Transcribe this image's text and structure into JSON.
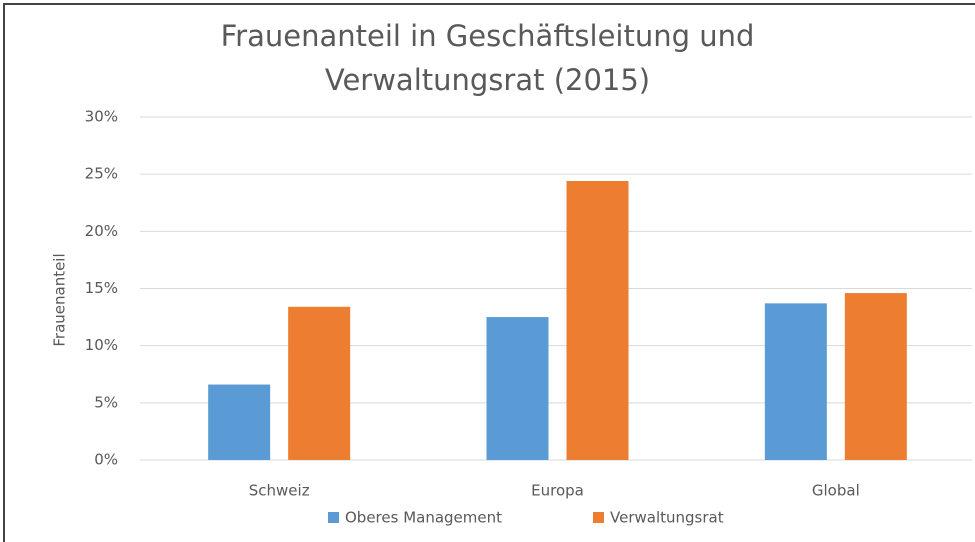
{
  "chart_data": {
    "type": "bar",
    "title": "Frauenanteil in Geschäftsleitung und Verwaltungsrat (2015)",
    "y_label": "Frauenanteil",
    "categories": [
      "Schweiz",
      "Europa",
      "Global"
    ],
    "series": [
      {
        "name": "Oberes Management",
        "color": "#5b9bd5",
        "values": [
          6.6,
          12.5,
          13.7
        ]
      },
      {
        "name": "Verwaltungsrat",
        "color": "#ed7d31",
        "values": [
          13.4,
          24.4,
          14.6
        ]
      }
    ],
    "ylim": [
      0,
      30
    ],
    "yticks": [
      {
        "value": 0,
        "label": "0%"
      },
      {
        "value": 5,
        "label": "5%"
      },
      {
        "value": 10,
        "label": "10%"
      },
      {
        "value": 15,
        "label": "15%"
      },
      {
        "value": 20,
        "label": "20%"
      },
      {
        "value": 25,
        "label": "25%"
      },
      {
        "value": 30,
        "label": "30%"
      }
    ],
    "grid": true,
    "legend": "bottom"
  }
}
